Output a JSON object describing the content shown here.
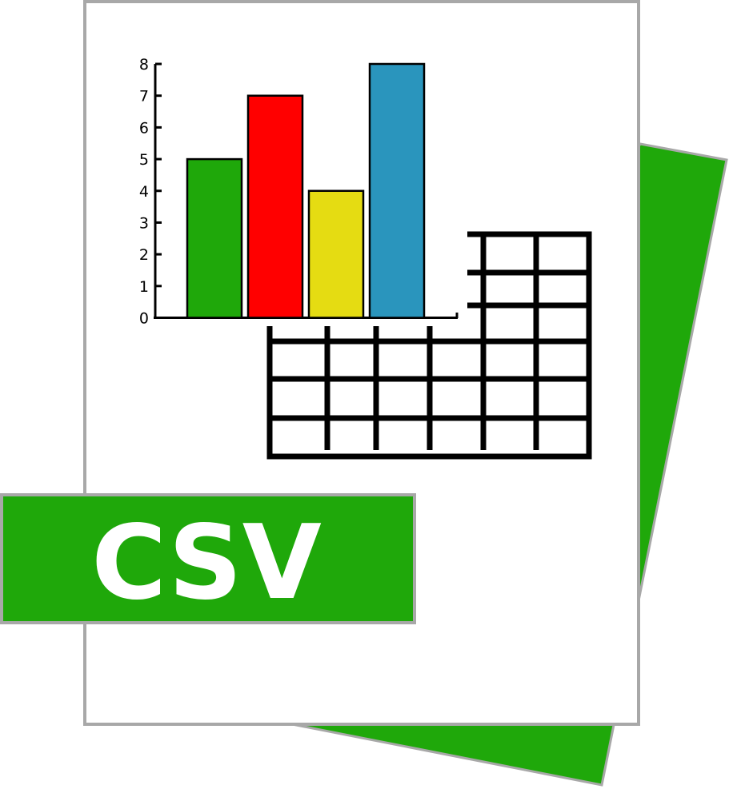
{
  "badge": {
    "label": "CSV"
  },
  "colors": {
    "accent_green": "#1fa80a",
    "page_white": "#ffffff",
    "page_border": "#a8a8a8",
    "grid_black": "#000000"
  },
  "chart_data": {
    "type": "bar",
    "title": "",
    "xlabel": "",
    "ylabel": "",
    "ylim": [
      0,
      8
    ],
    "yticks": [
      "0",
      "1",
      "2",
      "3",
      "4",
      "5",
      "6",
      "7",
      "8"
    ],
    "categories": [
      "",
      "",
      "",
      ""
    ],
    "values": [
      5,
      7,
      4,
      8
    ],
    "bar_colors": [
      "#1fa80a",
      "#ff0000",
      "#e5dc12",
      "#2a95bd"
    ],
    "grid": false,
    "legend": "none"
  },
  "icons": {
    "back_sheet": "back-sheet-icon",
    "front_page": "document-page-icon",
    "table": "spreadsheet-grid-icon"
  }
}
